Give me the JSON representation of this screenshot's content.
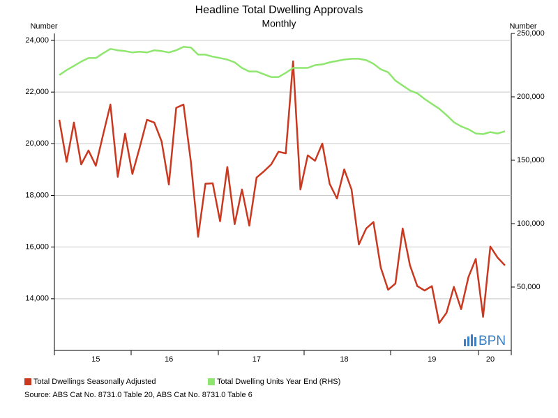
{
  "chart_data": {
    "type": "line",
    "title": "Headline Total Dwelling Approvals",
    "subtitle": "Monthly",
    "y_label": "Number",
    "y2_label": "Number",
    "logo": "BPN",
    "source": "Source: ABS Cat No. 8731.0 Table 20, ABS Cat No. 8731.0 Table 6",
    "categories": [
      null,
      null,
      null,
      null,
      null,
      "15",
      null,
      null,
      null,
      null,
      null,
      null,
      null,
      null,
      null,
      "16",
      null,
      null,
      null,
      null,
      null,
      null,
      null,
      null,
      null,
      null,
      null,
      "17",
      null,
      null,
      null,
      null,
      null,
      null,
      null,
      null,
      null,
      null,
      null,
      "18",
      null,
      null,
      null,
      null,
      null,
      null,
      null,
      null,
      null,
      null,
      null,
      "19",
      null,
      null,
      null,
      null,
      null,
      null,
      null,
      "20",
      null,
      null
    ],
    "ylim": [
      12000,
      24270
    ],
    "yticks": [
      {
        "value": 14000,
        "label": "14,000"
      },
      {
        "value": 16000,
        "label": "16,000"
      },
      {
        "value": 18000,
        "label": "18,000"
      },
      {
        "value": 20000,
        "label": "20,000"
      },
      {
        "value": 22000,
        "label": "22,000"
      },
      {
        "value": 24000,
        "label": "24,000"
      }
    ],
    "y2lim": [
      0,
      250000
    ],
    "y2ticks": [
      {
        "value": 50000,
        "label": "50,000"
      },
      {
        "value": 100000,
        "label": "100,000"
      },
      {
        "value": 150000,
        "label": "150,000"
      },
      {
        "value": 200000,
        "label": "200,000"
      },
      {
        "value": 250000,
        "label": "250,000"
      }
    ],
    "grid": true,
    "series": [
      {
        "name": "Total Dwellings Seasonally Adjusted",
        "color": "#c9381f",
        "axis": "y",
        "values": [
          20930,
          19300,
          20820,
          19200,
          19740,
          19150,
          20360,
          21520,
          18720,
          20390,
          18830,
          19850,
          20930,
          20820,
          20090,
          18420,
          21390,
          21520,
          19310,
          16400,
          18450,
          18470,
          17000,
          19100,
          16890,
          18230,
          16830,
          18690,
          18930,
          19200,
          19690,
          19630,
          23190,
          18230,
          19550,
          19340,
          20010,
          18450,
          17880,
          19010,
          18230,
          16100,
          16720,
          16970,
          15210,
          14350,
          14590,
          16720,
          15290,
          14490,
          14320,
          14490,
          13060,
          13460,
          14460,
          13600,
          14840,
          15540,
          13300,
          16020,
          15590,
          15290
        ]
      },
      {
        "name": "Total Dwelling Units Year End (RHS)",
        "color": "#8ee66e",
        "axis": "y2",
        "values": [
          217200,
          221100,
          224400,
          227800,
          230600,
          230600,
          234400,
          237800,
          236700,
          236100,
          235000,
          235600,
          235000,
          236700,
          236100,
          235000,
          236700,
          239400,
          238900,
          233300,
          233300,
          231700,
          230600,
          229400,
          227200,
          222800,
          220000,
          220000,
          217800,
          215600,
          215600,
          218900,
          222800,
          222800,
          222800,
          225000,
          225600,
          227200,
          228300,
          229400,
          230000,
          230000,
          228900,
          226100,
          221700,
          219400,
          212800,
          208900,
          205000,
          202800,
          198300,
          194400,
          190600,
          185600,
          180000,
          176700,
          174400,
          171100,
          170600,
          172200,
          171100,
          172800
        ]
      }
    ]
  }
}
